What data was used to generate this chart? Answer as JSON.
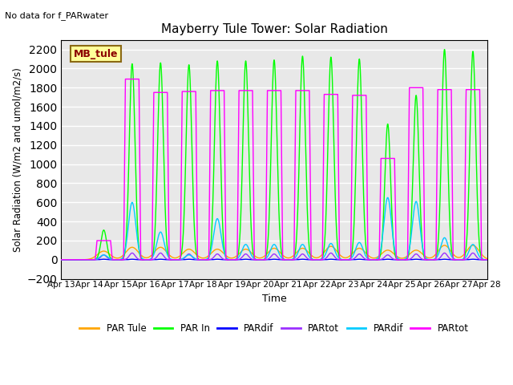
{
  "title": "Mayberry Tule Tower: Solar Radiation",
  "top_left_text": "No data for f_PARwater",
  "ylabel": "Solar Radiation (W/m2 and umol/m2/s)",
  "xlabel": "Time",
  "ylim": [
    -200,
    2300
  ],
  "yticks": [
    -200,
    0,
    200,
    400,
    600,
    800,
    1000,
    1200,
    1400,
    1600,
    1800,
    2000,
    2200
  ],
  "x_start": 13,
  "x_end": 28,
  "n_days": 15,
  "plot_bg_color": "#e8e8e8",
  "grid_color": "white",
  "legend_label": "MB_tule",
  "legend_bg": "#ffff99",
  "legend_border": "#8b6914",
  "series": [
    {
      "name": "PAR Tule",
      "color": "#ffa500",
      "lw": 1.0
    },
    {
      "name": "PAR In",
      "color": "#00ff00",
      "lw": 1.0
    },
    {
      "name": "PARdif",
      "color": "#0000ff",
      "lw": 1.0
    },
    {
      "name": "PARtot",
      "color": "#9b30ff",
      "lw": 1.0
    },
    {
      "name": "PARdif",
      "color": "#00ccff",
      "lw": 1.0
    },
    {
      "name": "PARtot",
      "color": "#ff00ff",
      "lw": 1.0
    }
  ],
  "xtick_labels": [
    "Apr 13",
    "Apr 14",
    "Apr 15",
    "Apr 16",
    "Apr 17",
    "Apr 18",
    "Apr 19",
    "Apr 20",
    "Apr 21",
    "Apr 22",
    "Apr 23",
    "Apr 24",
    "Apr 25",
    "Apr 26",
    "Apr 27",
    "Apr 28"
  ],
  "xtick_positions": [
    13,
    14,
    15,
    16,
    17,
    18,
    19,
    20,
    21,
    22,
    23,
    24,
    25,
    26,
    27,
    28
  ],
  "par_in_peaks": [
    0,
    310,
    2050,
    2060,
    2040,
    2080,
    2080,
    2090,
    2130,
    2120,
    2100,
    1420,
    1720,
    2200,
    2180
  ],
  "par_tule_peaks": [
    0,
    90,
    130,
    130,
    110,
    110,
    110,
    120,
    120,
    140,
    120,
    100,
    100,
    150,
    150
  ],
  "par_tot_m_peaks": [
    0,
    200,
    1890,
    1750,
    1760,
    1770,
    1770,
    1770,
    1770,
    1730,
    1720,
    1060,
    1800,
    1780,
    1780
  ],
  "par_dif_m_peaks": [
    0,
    50,
    600,
    290,
    50,
    430,
    160,
    160,
    160,
    170,
    180,
    650,
    610,
    230,
    160
  ],
  "par_tot_p_peaks": [
    0,
    50,
    70,
    70,
    60,
    60,
    60,
    60,
    60,
    70,
    60,
    50,
    60,
    70,
    70
  ],
  "par_dif_p_peaks": [
    0,
    5,
    5,
    5,
    5,
    5,
    5,
    5,
    5,
    5,
    5,
    5,
    5,
    5,
    5
  ]
}
